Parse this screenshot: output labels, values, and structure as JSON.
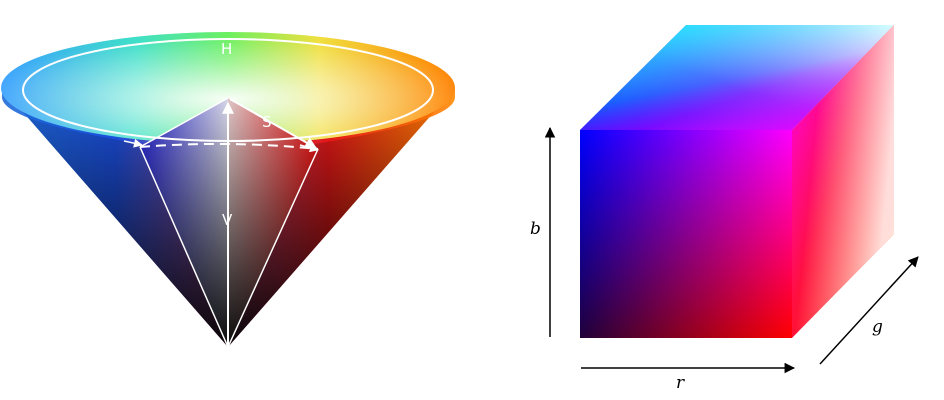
{
  "hsv_cone": {
    "hue_label": "H",
    "saturation_label": "S",
    "value_label": "V"
  },
  "rgb_cube": {
    "r_axis_label": "r",
    "g_axis_label": "g",
    "b_axis_label": "b"
  },
  "colors": {
    "red": "#ff0000",
    "green": "#00ff00",
    "blue": "#0000ff",
    "cyan": "#00ffff",
    "magenta": "#ff00ff",
    "yellow": "#ffff00",
    "white": "#ffffff",
    "black": "#000000"
  }
}
